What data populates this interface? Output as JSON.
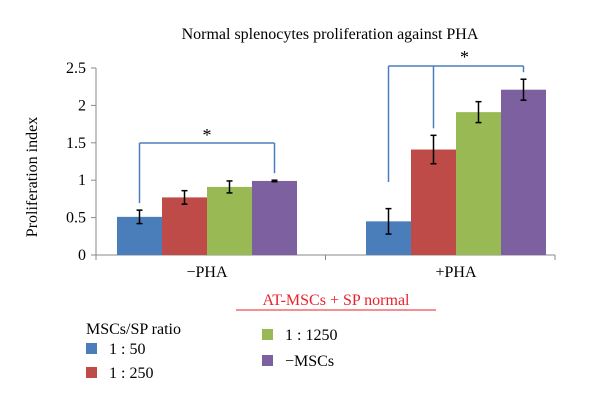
{
  "chart_data": {
    "type": "bar",
    "title": "Normal splenocytes proliferation against PHA",
    "ylabel": "Proliferation index",
    "xlabel": "",
    "categories": [
      "−PHA",
      "+PHA"
    ],
    "ylim": [
      0,
      2.5
    ],
    "yticks": [
      0,
      0.5,
      1,
      1.5,
      2,
      2.5
    ],
    "ytick_labels": [
      "0",
      "0.5",
      "1",
      "1.5",
      "2",
      "2.5"
    ],
    "grid": false,
    "legend_title": "MSCs/SP ratio",
    "legend_position": "bottom-left",
    "series": [
      {
        "name": "1 : 50",
        "color": "#4a7ebb",
        "values": [
          0.51,
          0.45
        ],
        "errors": [
          0.09,
          0.17
        ]
      },
      {
        "name": "1 : 250",
        "color": "#be4b48",
        "values": [
          0.77,
          1.41
        ],
        "errors": [
          0.09,
          0.19
        ]
      },
      {
        "name": "1 : 1250",
        "color": "#98b954",
        "values": [
          0.91,
          1.91
        ],
        "errors": [
          0.08,
          0.14
        ]
      },
      {
        "name": "−MSCs",
        "color": "#7d60a0",
        "values": [
          0.99,
          2.21
        ],
        "errors": [
          0.01,
          0.14
        ]
      }
    ],
    "significance": [
      {
        "group": 0,
        "label": "*"
      },
      {
        "group": 1,
        "label": "*"
      }
    ],
    "annotation": {
      "text": "AT-MSCs + SP normal",
      "color": "#e8222a"
    }
  }
}
